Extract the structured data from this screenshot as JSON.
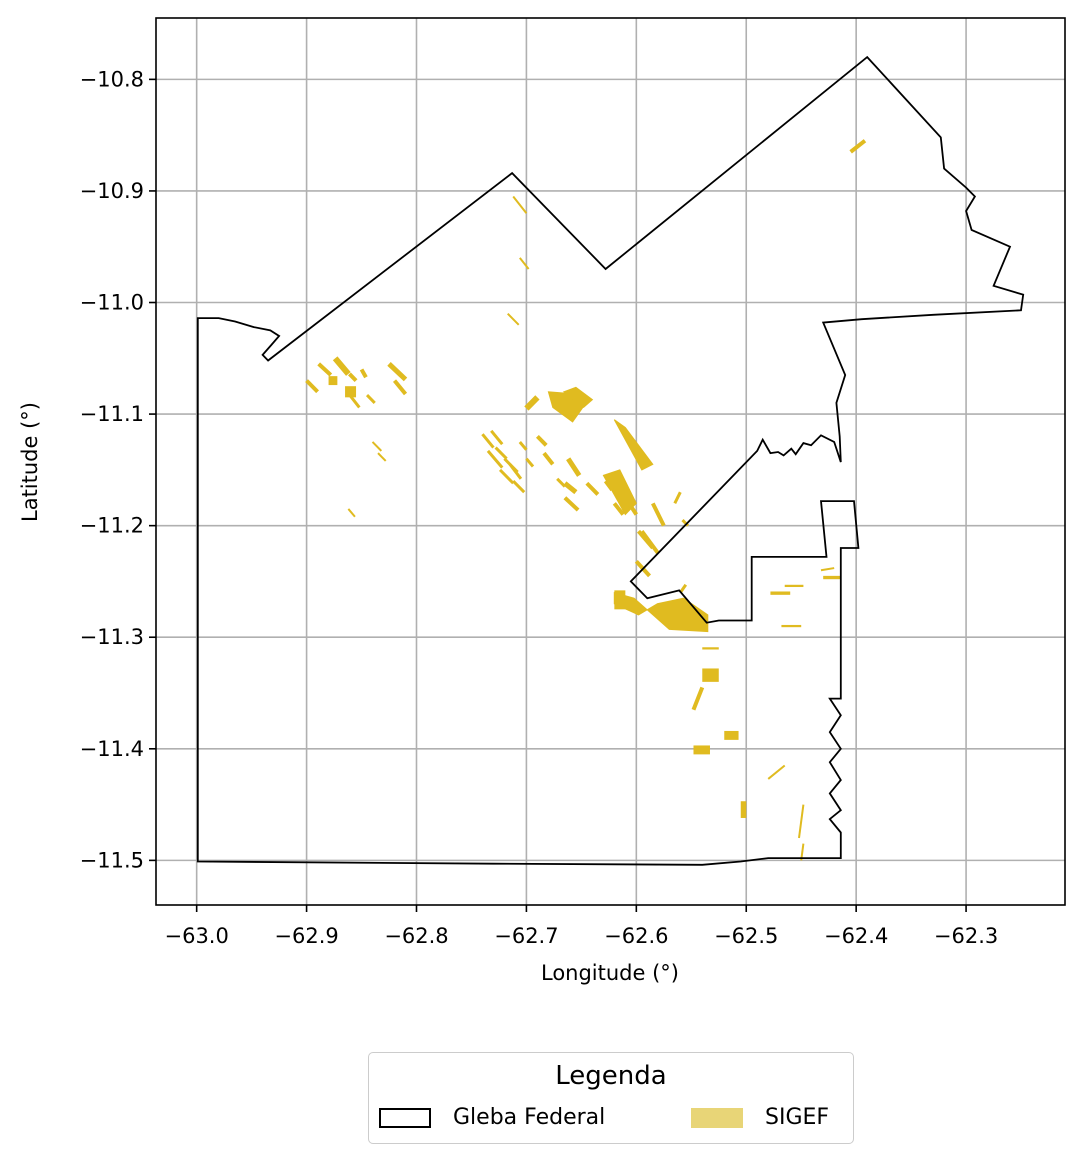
{
  "chart_data": {
    "type": "map",
    "xlabel": "Longitude (°)",
    "ylabel": "Latitude (°)",
    "xlim": [
      -63.037,
      -62.21
    ],
    "ylim": [
      -11.54,
      -10.745
    ],
    "grid": true,
    "x_ticks": [
      {
        "value": -63.0,
        "label": "−63.0"
      },
      {
        "value": -62.9,
        "label": "−62.9"
      },
      {
        "value": -62.8,
        "label": "−62.8"
      },
      {
        "value": -62.7,
        "label": "−62.7"
      },
      {
        "value": -62.6,
        "label": "−62.6"
      },
      {
        "value": -62.5,
        "label": "−62.5"
      },
      {
        "value": -62.4,
        "label": "−62.4"
      },
      {
        "value": -62.3,
        "label": "−62.3"
      }
    ],
    "y_ticks": [
      {
        "value": -10.8,
        "label": "−10.8"
      },
      {
        "value": -10.9,
        "label": "−10.9"
      },
      {
        "value": -11.0,
        "label": "−11.0"
      },
      {
        "value": -11.1,
        "label": "−11.1"
      },
      {
        "value": -11.2,
        "label": "−11.2"
      },
      {
        "value": -11.3,
        "label": "−11.3"
      },
      {
        "value": -11.4,
        "label": "−11.4"
      },
      {
        "value": -11.5,
        "label": "−11.5"
      }
    ],
    "legend": {
      "title": "Legenda",
      "placement": "bottom-center",
      "entries": [
        {
          "label": "Gleba Federal",
          "edge_color": "#000000",
          "fill": "none"
        },
        {
          "label": "SIGEF",
          "fill": "#e8d577"
        }
      ]
    },
    "series": [
      {
        "name": "Gleba Federal",
        "kind": "polygon_outline",
        "color": "#000000",
        "coords": [
          [
            -62.999,
            -11.501
          ],
          [
            -62.73,
            -11.503
          ],
          [
            -62.54,
            -11.504
          ],
          [
            -62.505,
            -11.501
          ],
          [
            -62.48,
            -11.498
          ],
          [
            -62.414,
            -11.498
          ],
          [
            -62.414,
            -11.475
          ],
          [
            -62.424,
            -11.463
          ],
          [
            -62.414,
            -11.455
          ],
          [
            -62.424,
            -11.44
          ],
          [
            -62.414,
            -11.428
          ],
          [
            -62.424,
            -11.412
          ],
          [
            -62.414,
            -11.4
          ],
          [
            -62.424,
            -11.385
          ],
          [
            -62.414,
            -11.37
          ],
          [
            -62.424,
            -11.355
          ],
          [
            -62.414,
            -11.355
          ],
          [
            -62.414,
            -11.22
          ],
          [
            -62.398,
            -11.22
          ],
          [
            -62.402,
            -11.178
          ],
          [
            -62.432,
            -11.178
          ],
          [
            -62.427,
            -11.228
          ],
          [
            -62.495,
            -11.228
          ],
          [
            -62.495,
            -11.285
          ],
          [
            -62.525,
            -11.285
          ],
          [
            -62.536,
            -11.287
          ],
          [
            -62.561,
            -11.258
          ],
          [
            -62.59,
            -11.265
          ],
          [
            -62.605,
            -11.25
          ],
          [
            -62.49,
            -11.133
          ],
          [
            -62.485,
            -11.123
          ],
          [
            -62.478,
            -11.135
          ],
          [
            -62.471,
            -11.134
          ],
          [
            -62.466,
            -11.137
          ],
          [
            -62.459,
            -11.131
          ],
          [
            -62.455,
            -11.136
          ],
          [
            -62.448,
            -11.126
          ],
          [
            -62.441,
            -11.128
          ],
          [
            -62.432,
            -11.119
          ],
          [
            -62.42,
            -11.125
          ],
          [
            -62.414,
            -11.143
          ],
          [
            -62.415,
            -11.12
          ],
          [
            -62.418,
            -11.09
          ],
          [
            -62.41,
            -11.065
          ],
          [
            -62.43,
            -11.018
          ],
          [
            -62.395,
            -11.015
          ],
          [
            -62.33,
            -11.011
          ],
          [
            -62.25,
            -11.007
          ],
          [
            -62.248,
            -10.993
          ],
          [
            -62.275,
            -10.985
          ],
          [
            -62.26,
            -10.95
          ],
          [
            -62.295,
            -10.935
          ],
          [
            -62.3,
            -10.918
          ],
          [
            -62.292,
            -10.905
          ],
          [
            -62.3,
            -10.897
          ],
          [
            -62.32,
            -10.88
          ],
          [
            -62.323,
            -10.852
          ],
          [
            -62.39,
            -10.78
          ],
          [
            -62.628,
            -10.97
          ],
          [
            -62.713,
            -10.884
          ],
          [
            -62.935,
            -11.052
          ],
          [
            -62.94,
            -11.047
          ],
          [
            -62.932,
            -11.038
          ],
          [
            -62.925,
            -11.03
          ],
          [
            -62.933,
            -11.025
          ],
          [
            -62.948,
            -11.022
          ],
          [
            -62.965,
            -11.017
          ],
          [
            -62.98,
            -11.014
          ],
          [
            -62.999,
            -11.014
          ],
          [
            -62.999,
            -11.501
          ]
        ]
      },
      {
        "name": "SIGEF",
        "kind": "parcels",
        "color": "#e0bb20",
        "polygons": [
          [
            [
              -62.581,
              -11.27
            ],
            [
              -62.557,
              -11.265
            ],
            [
              -62.535,
              -11.28
            ],
            [
              -62.535,
              -11.295
            ],
            [
              -62.57,
              -11.293
            ],
            [
              -62.602,
              -11.265
            ],
            [
              -62.62,
              -11.26
            ],
            [
              -62.62,
              -11.27
            ],
            [
              -62.598,
              -11.28
            ]
          ],
          [
            [
              -62.648,
              -11.093
            ],
            [
              -62.655,
              -11.082
            ],
            [
              -62.68,
              -11.08
            ],
            [
              -62.676,
              -11.094
            ],
            [
              -62.658,
              -11.107
            ]
          ],
          [
            [
              -62.666,
              -11.08
            ],
            [
              -62.655,
              -11.076
            ],
            [
              -62.64,
              -11.087
            ],
            [
              -62.648,
              -11.094
            ]
          ],
          [
            [
              -62.63,
              -11.155
            ],
            [
              -62.615,
              -11.15
            ],
            [
              -62.6,
              -11.18
            ],
            [
              -62.61,
              -11.19
            ]
          ],
          [
            [
              -62.62,
              -11.105
            ],
            [
              -62.61,
              -11.112
            ],
            [
              -62.585,
              -11.145
            ],
            [
              -62.595,
              -11.15
            ]
          ]
        ],
        "rects": [
          [
            -62.54,
            -62.525,
            -11.34,
            -11.328
          ],
          [
            -62.548,
            -62.533,
            -11.405,
            -11.397
          ],
          [
            -62.52,
            -62.507,
            -11.392,
            -11.384
          ],
          [
            -62.505,
            -62.5,
            -11.462,
            -11.447
          ],
          [
            -62.62,
            -62.61,
            -11.275,
            -11.258
          ],
          [
            -62.465,
            -62.448,
            -11.255,
            -11.253
          ],
          [
            -62.43,
            -62.414,
            -11.248,
            -11.245
          ],
          [
            -62.478,
            -62.46,
            -11.262,
            -11.259
          ],
          [
            -62.468,
            -62.45,
            -11.291,
            -11.289
          ],
          [
            -62.54,
            -62.525,
            -11.311,
            -11.309
          ],
          [
            -62.865,
            -62.855,
            -11.085,
            -11.075
          ],
          [
            -62.88,
            -62.872,
            -11.074,
            -11.066
          ]
        ],
        "strokes": [
          [
            [
              -62.712,
              -10.905
            ],
            [
              -62.7,
              -10.92
            ],
            2
          ],
          [
            [
              -62.706,
              -10.96
            ],
            [
              -62.698,
              -10.97
            ],
            2
          ],
          [
            [
              -62.717,
              -11.01
            ],
            [
              -62.707,
              -11.02
            ],
            2
          ],
          [
            [
              -62.874,
              -11.05
            ],
            [
              -62.862,
              -11.064
            ],
            6
          ],
          [
            [
              -62.889,
              -11.055
            ],
            [
              -62.878,
              -11.065
            ],
            4
          ],
          [
            [
              -62.9,
              -11.07
            ],
            [
              -62.89,
              -11.08
            ],
            4
          ],
          [
            [
              -62.861,
              -11.064
            ],
            [
              -62.855,
              -11.07
            ],
            4
          ],
          [
            [
              -62.85,
              -11.06
            ],
            [
              -62.846,
              -11.067
            ],
            4
          ],
          [
            [
              -62.825,
              -11.055
            ],
            [
              -62.81,
              -11.069
            ],
            5
          ],
          [
            [
              -62.82,
              -11.07
            ],
            [
              -62.81,
              -11.082
            ],
            4
          ],
          [
            [
              -62.845,
              -11.083
            ],
            [
              -62.838,
              -11.09
            ],
            3
          ],
          [
            [
              -62.86,
              -11.084
            ],
            [
              -62.852,
              -11.094
            ],
            3
          ],
          [
            [
              -62.84,
              -11.125
            ],
            [
              -62.832,
              -11.133
            ],
            2
          ],
          [
            [
              -62.835,
              -11.135
            ],
            [
              -62.828,
              -11.142
            ],
            2
          ],
          [
            [
              -62.862,
              -11.185
            ],
            [
              -62.856,
              -11.192
            ],
            2
          ],
          [
            [
              -62.74,
              -11.118
            ],
            [
              -62.73,
              -11.13
            ],
            3
          ],
          [
            [
              -62.732,
              -11.115
            ],
            [
              -62.722,
              -11.127
            ],
            3
          ],
          [
            [
              -62.728,
              -11.13
            ],
            [
              -62.718,
              -11.14
            ],
            3
          ],
          [
            [
              -62.735,
              -11.133
            ],
            [
              -62.722,
              -11.148
            ],
            3
          ],
          [
            [
              -62.72,
              -11.14
            ],
            [
              -62.708,
              -11.152
            ],
            3
          ],
          [
            [
              -62.724,
              -11.15
            ],
            [
              -62.712,
              -11.162
            ],
            3
          ],
          [
            [
              -62.715,
              -11.145
            ],
            [
              -62.705,
              -11.158
            ],
            3
          ],
          [
            [
              -62.712,
              -11.16
            ],
            [
              -62.702,
              -11.17
            ],
            3
          ],
          [
            [
              -62.706,
              -11.125
            ],
            [
              -62.7,
              -11.132
            ],
            3
          ],
          [
            [
              -62.7,
              -11.14
            ],
            [
              -62.694,
              -11.147
            ],
            3
          ],
          [
            [
              -62.69,
              -11.12
            ],
            [
              -62.682,
              -11.128
            ],
            4
          ],
          [
            [
              -62.684,
              -11.135
            ],
            [
              -62.676,
              -11.145
            ],
            4
          ],
          [
            [
              -62.7,
              -11.095
            ],
            [
              -62.69,
              -11.085
            ],
            6
          ],
          [
            [
              -62.662,
              -11.14
            ],
            [
              -62.652,
              -11.155
            ],
            5
          ],
          [
            [
              -62.665,
              -11.162
            ],
            [
              -62.655,
              -11.17
            ],
            5
          ],
          [
            [
              -62.672,
              -11.158
            ],
            [
              -62.665,
              -11.165
            ],
            3
          ],
          [
            [
              -62.665,
              -11.175
            ],
            [
              -62.653,
              -11.186
            ],
            4
          ],
          [
            [
              -62.645,
              -11.162
            ],
            [
              -62.635,
              -11.172
            ],
            4
          ],
          [
            [
              -62.628,
              -11.16
            ],
            [
              -62.622,
              -11.168
            ],
            4
          ],
          [
            [
              -62.608,
              -11.178
            ],
            [
              -62.6,
              -11.19
            ],
            4
          ],
          [
            [
              -62.62,
              -11.18
            ],
            [
              -62.612,
              -11.19
            ],
            4
          ],
          [
            [
              -62.585,
              -11.18
            ],
            [
              -62.575,
              -11.2
            ],
            4
          ],
          [
            [
              -62.598,
              -11.205
            ],
            [
              -62.585,
              -11.22
            ],
            4
          ],
          [
            [
              -62.6,
              -11.232
            ],
            [
              -62.588,
              -11.245
            ],
            4
          ],
          [
            [
              -62.595,
              -11.205
            ],
            [
              -62.58,
              -11.225
            ],
            4
          ],
          [
            [
              -62.56,
              -11.26
            ],
            [
              -62.555,
              -11.253
            ],
            3
          ],
          [
            [
              -62.565,
              -11.18
            ],
            [
              -62.56,
              -11.17
            ],
            3
          ],
          [
            [
              -62.558,
              -11.195
            ],
            [
              -62.553,
              -11.2
            ],
            3
          ],
          [
            [
              -62.548,
              -11.365
            ],
            [
              -62.54,
              -11.345
            ],
            4
          ],
          [
            [
              -62.48,
              -11.427
            ],
            [
              -62.465,
              -11.415
            ],
            2
          ],
          [
            [
              -62.452,
              -11.48
            ],
            [
              -62.448,
              -11.45
            ],
            2
          ],
          [
            [
              -62.45,
              -11.5
            ],
            [
              -62.448,
              -11.485
            ],
            2
          ],
          [
            [
              -62.405,
              -10.865
            ],
            [
              -62.392,
              -10.855
            ],
            4
          ],
          [
            [
              -62.432,
              -11.24
            ],
            [
              -62.42,
              -11.238
            ],
            2
          ]
        ]
      }
    ]
  }
}
